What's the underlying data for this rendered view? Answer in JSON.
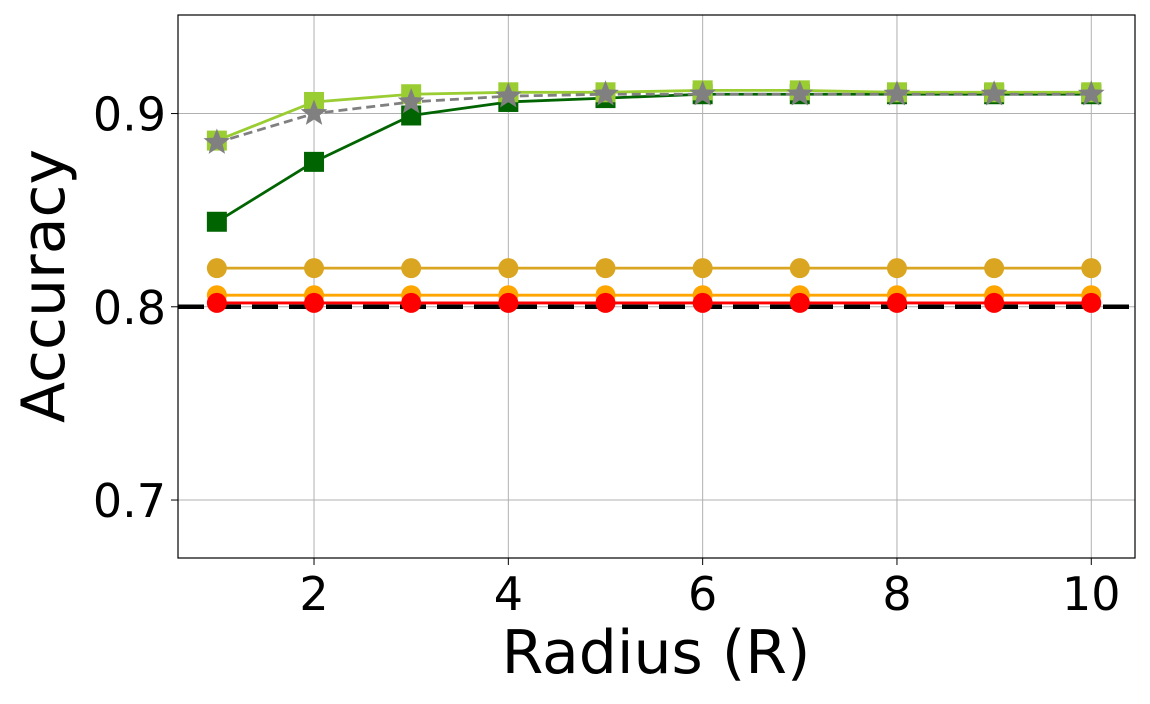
{
  "chart_data": {
    "type": "line",
    "title": "",
    "xlabel": "Radius (R)",
    "ylabel": "Accuracy",
    "xlim": [
      0.6,
      10.45
    ],
    "ylim": [
      0.67,
      0.951
    ],
    "xticks": [
      2,
      4,
      6,
      8,
      10
    ],
    "xtick_labels": [
      "2",
      "4",
      "6",
      "8",
      "10"
    ],
    "yticks": [
      0.7,
      0.8,
      0.9
    ],
    "ytick_labels": [
      "0.7",
      "0.8",
      "0.9"
    ],
    "grid": true,
    "legend": "none",
    "x": [
      1,
      2,
      3,
      4,
      5,
      6,
      7,
      8,
      9,
      10
    ],
    "series": [
      {
        "color": "#9ACD32",
        "marker": "square",
        "linestyle": "solid",
        "values": [
          0.886,
          0.906,
          0.91,
          0.911,
          0.911,
          0.912,
          0.912,
          0.911,
          0.911,
          0.911
        ]
      },
      {
        "color": "#006400",
        "marker": "square",
        "linestyle": "solid",
        "values": [
          0.844,
          0.875,
          0.899,
          0.906,
          0.908,
          0.91,
          0.91,
          0.91,
          0.91,
          0.91
        ]
      },
      {
        "color": "#808080",
        "marker": "star",
        "linestyle": "dashed",
        "values": [
          0.885,
          0.9,
          0.906,
          0.909,
          0.91,
          0.91,
          0.91,
          0.91,
          0.91,
          0.91
        ]
      },
      {
        "color": "#DAA520",
        "marker": "circle",
        "linestyle": "solid",
        "values": [
          0.82,
          0.82,
          0.82,
          0.82,
          0.82,
          0.82,
          0.82,
          0.82,
          0.82,
          0.82
        ]
      },
      {
        "color": "#FFA500",
        "marker": "circle",
        "linestyle": "solid",
        "values": [
          0.806,
          0.806,
          0.806,
          0.806,
          0.806,
          0.806,
          0.806,
          0.806,
          0.806,
          0.806
        ]
      },
      {
        "color": "#FF0000",
        "marker": "circle",
        "linestyle": "solid",
        "values": [
          0.802,
          0.802,
          0.802,
          0.802,
          0.802,
          0.802,
          0.802,
          0.802,
          0.802,
          0.802
        ]
      }
    ],
    "reference_line": {
      "y": 0.8,
      "color": "#000000",
      "linestyle": "dashed"
    }
  }
}
